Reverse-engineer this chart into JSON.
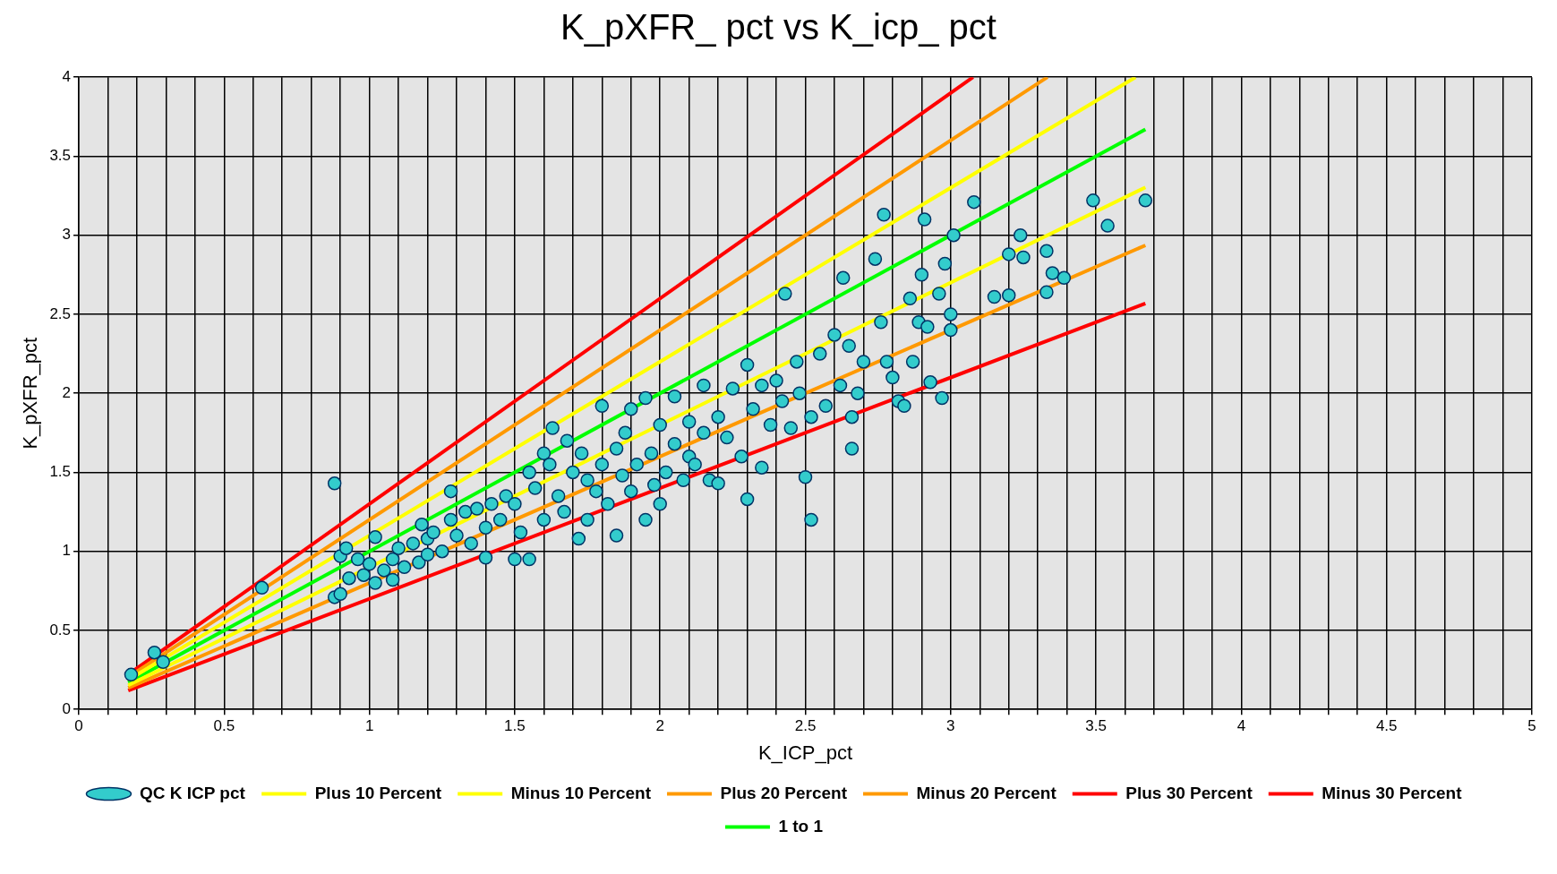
{
  "chart_data": {
    "type": "scatter",
    "title": "K_pXFR_ pct vs K_icp_ pct",
    "xlabel": "K_ICP_pct",
    "ylabel": "K_pXFR_pct",
    "xlim": [
      0,
      5
    ],
    "ylim": [
      0,
      4
    ],
    "xticks": [
      0,
      {
        "value": 0.1,
        "label": null
      },
      {
        "value": 0.2,
        "label": null
      },
      {
        "value": 0.3,
        "label": null
      },
      {
        "value": 0.4,
        "label": null
      },
      0.5,
      {
        "value": 0.6,
        "label": null
      },
      {
        "value": 0.7,
        "label": null
      },
      {
        "value": 0.8,
        "label": null
      },
      {
        "value": 0.9,
        "label": null
      },
      1,
      {
        "value": 1.1,
        "label": null
      },
      {
        "value": 1.2,
        "label": null
      },
      {
        "value": 1.3,
        "label": null
      },
      {
        "value": 1.4,
        "label": null
      },
      1.5,
      {
        "value": 1.6,
        "label": null
      },
      {
        "value": 1.7,
        "label": null
      },
      {
        "value": 1.8,
        "label": null
      },
      {
        "value": 1.9,
        "label": null
      },
      2,
      {
        "value": 2.1,
        "label": null
      },
      {
        "value": 2.2,
        "label": null
      },
      {
        "value": 2.3,
        "label": null
      },
      {
        "value": 2.4,
        "label": null
      },
      2.5,
      {
        "value": 2.6,
        "label": null
      },
      {
        "value": 2.7,
        "label": null
      },
      {
        "value": 2.8,
        "label": null
      },
      {
        "value": 2.9,
        "label": null
      },
      3,
      {
        "value": 3.1,
        "label": null
      },
      {
        "value": 3.2,
        "label": null
      },
      {
        "value": 3.3,
        "label": null
      },
      {
        "value": 3.4,
        "label": null
      },
      3.5,
      {
        "value": 3.6,
        "label": null
      },
      {
        "value": 3.7,
        "label": null
      },
      {
        "value": 3.8,
        "label": null
      },
      {
        "value": 3.9,
        "label": null
      },
      4,
      {
        "value": 4.1,
        "label": null
      },
      {
        "value": 4.2,
        "label": null
      },
      {
        "value": 4.3,
        "label": null
      },
      {
        "value": 4.4,
        "label": null
      },
      4.5,
      {
        "value": 4.6,
        "label": null
      },
      {
        "value": 4.7,
        "label": null
      },
      {
        "value": 4.8,
        "label": null
      },
      {
        "value": 4.9,
        "label": null
      },
      5
    ],
    "yticks": [
      0,
      0.5,
      1,
      1.5,
      2,
      2.5,
      3,
      3.5,
      4
    ],
    "grid": true,
    "legend": "bottom",
    "series": [
      {
        "name": "QC K ICP pct",
        "type": "scatter",
        "marker": "circle",
        "color": "#33cccc",
        "x": [
          0.18,
          0.26,
          0.29,
          0.63,
          0.88,
          0.88,
          0.9,
          0.9,
          0.92,
          0.93,
          0.96,
          0.98,
          1.0,
          1.02,
          1.02,
          1.05,
          1.08,
          1.08,
          1.1,
          1.12,
          1.15,
          1.17,
          1.18,
          1.2,
          1.2,
          1.22,
          1.25,
          1.28,
          1.28,
          1.3,
          1.33,
          1.35,
          1.37,
          1.4,
          1.4,
          1.42,
          1.45,
          1.47,
          1.5,
          1.5,
          1.52,
          1.55,
          1.55,
          1.57,
          1.6,
          1.6,
          1.62,
          1.63,
          1.65,
          1.67,
          1.68,
          1.7,
          1.72,
          1.73,
          1.75,
          1.75,
          1.78,
          1.8,
          1.8,
          1.82,
          1.85,
          1.85,
          1.87,
          1.88,
          1.9,
          1.9,
          1.92,
          1.95,
          1.95,
          1.97,
          1.98,
          2.0,
          2.0,
          2.02,
          2.05,
          2.05,
          2.08,
          2.1,
          2.1,
          2.12,
          2.15,
          2.15,
          2.17,
          2.2,
          2.2,
          2.23,
          2.25,
          2.28,
          2.3,
          2.3,
          2.32,
          2.35,
          2.35,
          2.38,
          2.4,
          2.42,
          2.43,
          2.45,
          2.47,
          2.48,
          2.5,
          2.52,
          2.52,
          2.55,
          2.57,
          2.6,
          2.62,
          2.63,
          2.65,
          2.66,
          2.66,
          2.68,
          2.7,
          2.74,
          2.76,
          2.77,
          2.78,
          2.8,
          2.82,
          2.84,
          2.86,
          2.87,
          2.89,
          2.9,
          2.91,
          2.92,
          2.93,
          2.96,
          2.97,
          2.98,
          3.0,
          3.0,
          3.01,
          3.08,
          3.15,
          3.2,
          3.2,
          3.24,
          3.25,
          3.33,
          3.33,
          3.35,
          3.39,
          3.49,
          3.54,
          3.67
        ],
        "values": [
          0.22,
          0.36,
          0.3,
          0.77,
          1.43,
          0.71,
          0.73,
          0.97,
          1.02,
          0.83,
          0.95,
          0.85,
          0.92,
          1.09,
          0.8,
          0.88,
          0.95,
          0.82,
          1.02,
          0.9,
          1.05,
          0.93,
          1.17,
          1.08,
          0.98,
          1.12,
          1.0,
          1.38,
          1.2,
          1.1,
          1.25,
          1.05,
          1.27,
          1.15,
          0.96,
          1.3,
          1.2,
          1.35,
          0.95,
          1.3,
          1.12,
          0.95,
          1.5,
          1.4,
          1.62,
          1.2,
          1.55,
          1.78,
          1.35,
          1.25,
          1.7,
          1.5,
          1.08,
          1.62,
          1.45,
          1.2,
          1.38,
          1.92,
          1.55,
          1.3,
          1.65,
          1.1,
          1.48,
          1.75,
          1.9,
          1.38,
          1.55,
          1.97,
          1.2,
          1.62,
          1.42,
          1.8,
          1.3,
          1.5,
          1.98,
          1.68,
          1.45,
          1.82,
          1.6,
          1.55,
          2.05,
          1.75,
          1.45,
          1.85,
          1.43,
          1.72,
          2.03,
          1.6,
          2.18,
          1.33,
          1.9,
          2.05,
          1.53,
          1.8,
          2.08,
          1.95,
          2.63,
          1.78,
          2.2,
          2.0,
          1.47,
          1.2,
          1.85,
          2.25,
          1.92,
          2.37,
          2.05,
          2.73,
          2.3,
          1.65,
          1.85,
          2.0,
          2.2,
          2.85,
          2.45,
          3.13,
          2.2,
          2.1,
          1.95,
          1.92,
          2.6,
          2.2,
          2.45,
          2.75,
          3.1,
          2.42,
          2.07,
          2.63,
          1.97,
          2.82,
          2.4,
          2.5,
          3.0,
          3.21,
          2.61,
          2.88,
          2.62,
          3.0,
          2.86,
          2.9,
          2.64,
          2.76,
          2.73,
          3.22,
          3.06,
          3.22
        ]
      },
      {
        "name": "Plus 10 Percent",
        "type": "line",
        "marker": "none",
        "line_style": "solid",
        "color": "#ffff00",
        "x": [
          0.17,
          3.636
        ],
        "values": [
          0.187,
          4
        ]
      },
      {
        "name": "Minus 10 Percent",
        "type": "line",
        "marker": "none",
        "line_style": "solid",
        "color": "#ffff00",
        "x": [
          0.17,
          3.67
        ],
        "values": [
          0.153,
          3.303
        ]
      },
      {
        "name": "Plus 20 Percent",
        "type": "line",
        "marker": "none",
        "line_style": "solid",
        "color": "#ff9900",
        "x": [
          0.17,
          3.333
        ],
        "values": [
          0.204,
          4
        ]
      },
      {
        "name": "Minus 20 Percent",
        "type": "line",
        "marker": "none",
        "line_style": "solid",
        "color": "#ff9900",
        "x": [
          0.17,
          3.67
        ],
        "values": [
          0.136,
          2.936
        ]
      },
      {
        "name": "Plus 30 Percent",
        "type": "line",
        "marker": "none",
        "line_style": "solid",
        "color": "#ff0000",
        "x": [
          0.17,
          3.077
        ],
        "values": [
          0.221,
          4
        ]
      },
      {
        "name": "Minus 30 Percent",
        "type": "line",
        "marker": "none",
        "line_style": "solid",
        "color": "#ff0000",
        "x": [
          0.17,
          3.67
        ],
        "values": [
          0.119,
          2.569
        ]
      },
      {
        "name": "1 to 1",
        "type": "line",
        "marker": "none",
        "line_style": "solid",
        "color": "#00ff00",
        "x": [
          0.17,
          3.67
        ],
        "values": [
          0.17,
          3.67
        ]
      }
    ]
  }
}
